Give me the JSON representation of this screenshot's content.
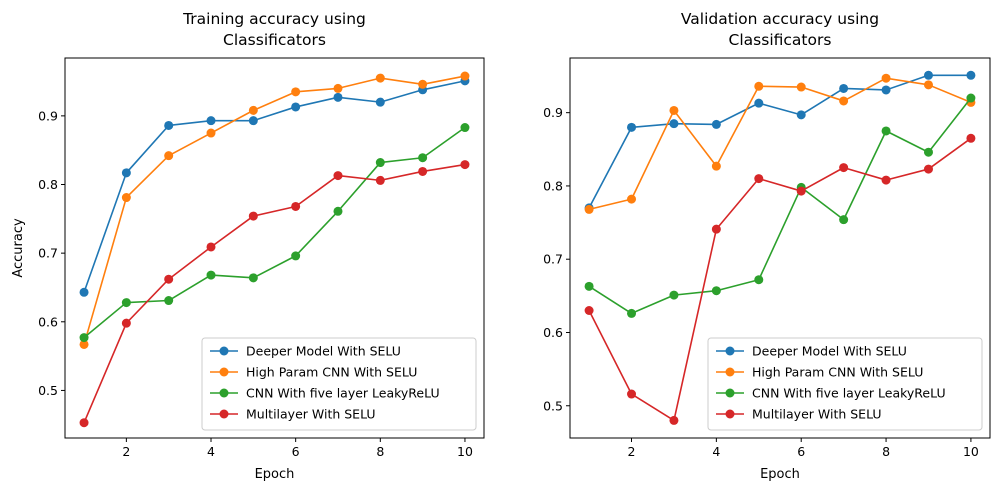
{
  "chart_data": [
    {
      "type": "line",
      "title_lines": [
        "Training accuracy using",
        "Classificators"
      ],
      "xlabel": "Epoch",
      "ylabel": "Accuracy",
      "x": [
        1,
        2,
        3,
        4,
        5,
        6,
        7,
        8,
        9,
        10
      ],
      "xlim": [
        0.55,
        10.45
      ],
      "ylim": [
        0.4307,
        0.9843
      ],
      "xticks": [
        2,
        4,
        6,
        8,
        10
      ],
      "yticks": [
        0.5,
        0.6,
        0.7,
        0.8,
        0.9
      ],
      "xtick_labels": [
        "2",
        "4",
        "6",
        "8",
        "10"
      ],
      "ytick_labels": [
        "0.5",
        "0.6",
        "0.7",
        "0.8",
        "0.9"
      ],
      "grid": false,
      "legend_position": "lower-right",
      "series": [
        {
          "name": "Deeper Model With SELU",
          "color": "#1f77b4",
          "values": [
            0.643,
            0.817,
            0.886,
            0.893,
            0.893,
            0.913,
            0.927,
            0.92,
            0.938,
            0.951
          ]
        },
        {
          "name": "High Param CNN With SELU",
          "color": "#ff7f0e",
          "values": [
            0.567,
            0.781,
            0.842,
            0.875,
            0.908,
            0.935,
            0.94,
            0.955,
            0.946,
            0.958
          ]
        },
        {
          "name": "CNN With five layer LeakyReLU",
          "color": "#2ca02c",
          "values": [
            0.577,
            0.628,
            0.631,
            0.668,
            0.664,
            0.696,
            0.761,
            0.832,
            0.839,
            0.883
          ]
        },
        {
          "name": "Multilayer With SELU",
          "color": "#d62728",
          "values": [
            0.453,
            0.598,
            0.662,
            0.709,
            0.754,
            0.768,
            0.813,
            0.806,
            0.819,
            0.829
          ]
        }
      ]
    },
    {
      "type": "line",
      "title_lines": [
        "Validation accuracy using",
        "Classificators"
      ],
      "xlabel": "Epoch",
      "ylabel": "",
      "x": [
        1,
        2,
        3,
        4,
        5,
        6,
        7,
        8,
        9,
        10
      ],
      "xlim": [
        0.55,
        10.45
      ],
      "ylim": [
        0.456,
        0.9746
      ],
      "xticks": [
        2,
        4,
        6,
        8,
        10
      ],
      "yticks": [
        0.5,
        0.6,
        0.7,
        0.8,
        0.9
      ],
      "xtick_labels": [
        "2",
        "4",
        "6",
        "8",
        "10"
      ],
      "ytick_labels": [
        "0.5",
        "0.6",
        "0.7",
        "0.8",
        "0.9"
      ],
      "grid": false,
      "legend_position": "lower-right",
      "series": [
        {
          "name": "Deeper Model With SELU",
          "color": "#1f77b4",
          "values": [
            0.77,
            0.88,
            0.885,
            0.884,
            0.913,
            0.897,
            0.933,
            0.931,
            0.951,
            0.951
          ]
        },
        {
          "name": "High Param CNN With SELU",
          "color": "#ff7f0e",
          "values": [
            0.768,
            0.782,
            0.903,
            0.827,
            0.936,
            0.935,
            0.916,
            0.947,
            0.938,
            0.914
          ]
        },
        {
          "name": "CNN With five layer LeakyReLU",
          "color": "#2ca02c",
          "values": [
            0.663,
            0.626,
            0.651,
            0.657,
            0.672,
            0.798,
            0.754,
            0.875,
            0.846,
            0.92
          ]
        },
        {
          "name": "Multilayer With SELU",
          "color": "#d62728",
          "values": [
            0.63,
            0.516,
            0.48,
            0.741,
            0.81,
            0.793,
            0.825,
            0.808,
            0.823,
            0.865
          ]
        }
      ]
    }
  ]
}
